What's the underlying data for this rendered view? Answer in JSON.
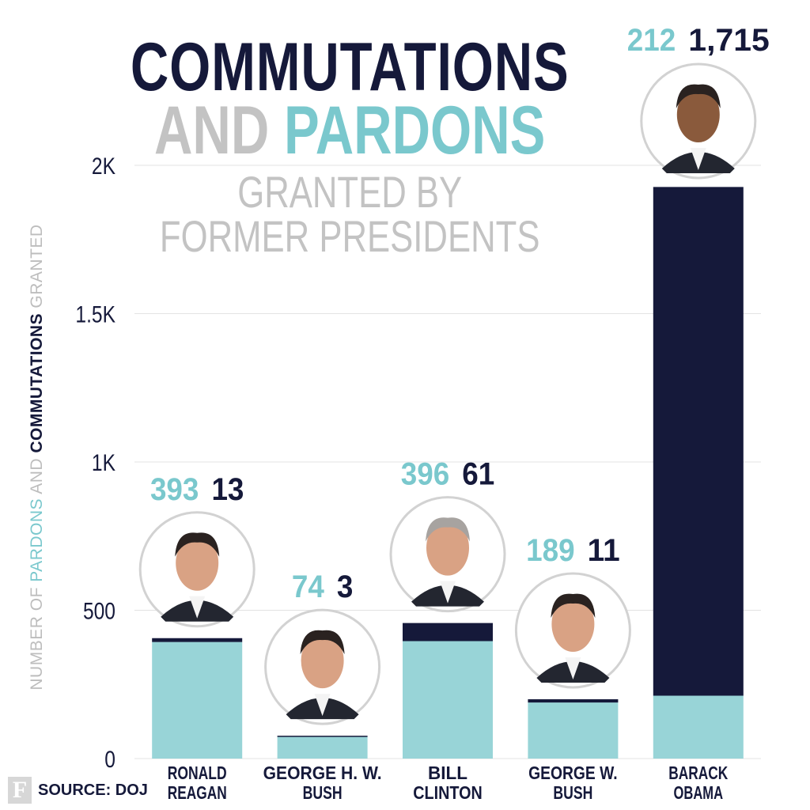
{
  "title": {
    "line1": "COMMUTATIONS",
    "line2_and": "AND",
    "line2_pardons": "PARDONS",
    "line3": "GRANTED BY",
    "line4": "FORMER PRESIDENTS"
  },
  "ylabel": {
    "part1": "NUMBER OF ",
    "part2": "PARDONS",
    "part3": " AND ",
    "part4": "COMMUTATIONS",
    "part5": " GRANTED"
  },
  "source": {
    "logo": "F",
    "text": "SOURCE: DOJ"
  },
  "colors": {
    "pardons": "#98d4d7",
    "pardons_label": "#7ac8cd",
    "commutations": "#15193a",
    "grid": "#e3e3e3",
    "tick": "#15193a"
  },
  "chart_data": {
    "type": "bar",
    "stacked": true,
    "categories": [
      [
        "RONALD",
        "REAGAN"
      ],
      [
        "GEORGE H. W.",
        "BUSH"
      ],
      [
        "BILL",
        "CLINTON"
      ],
      [
        "GEORGE W.",
        "BUSH"
      ],
      [
        "BARACK",
        "OBAMA"
      ]
    ],
    "series": [
      {
        "key": "pardons",
        "values": [
          393,
          74,
          396,
          189,
          212
        ]
      },
      {
        "key": "commutations",
        "values": [
          13,
          3,
          61,
          11,
          1715
        ]
      }
    ],
    "value_labels": {
      "pardons": [
        "393",
        "74",
        "396",
        "189",
        "212"
      ],
      "commutations": [
        "13",
        "3",
        "61",
        "11",
        "1,715"
      ]
    },
    "ylim": [
      0,
      2000
    ],
    "yticks": [
      0,
      500,
      1000,
      1500,
      2000
    ],
    "ytick_labels": [
      "0",
      "500",
      "1K",
      "1.5K",
      "2K"
    ],
    "grid": true,
    "portraits": [
      "ronald-reagan-portrait",
      "george-hw-bush-portrait",
      "bill-clinton-portrait",
      "george-w-bush-portrait",
      "barack-obama-portrait"
    ]
  }
}
